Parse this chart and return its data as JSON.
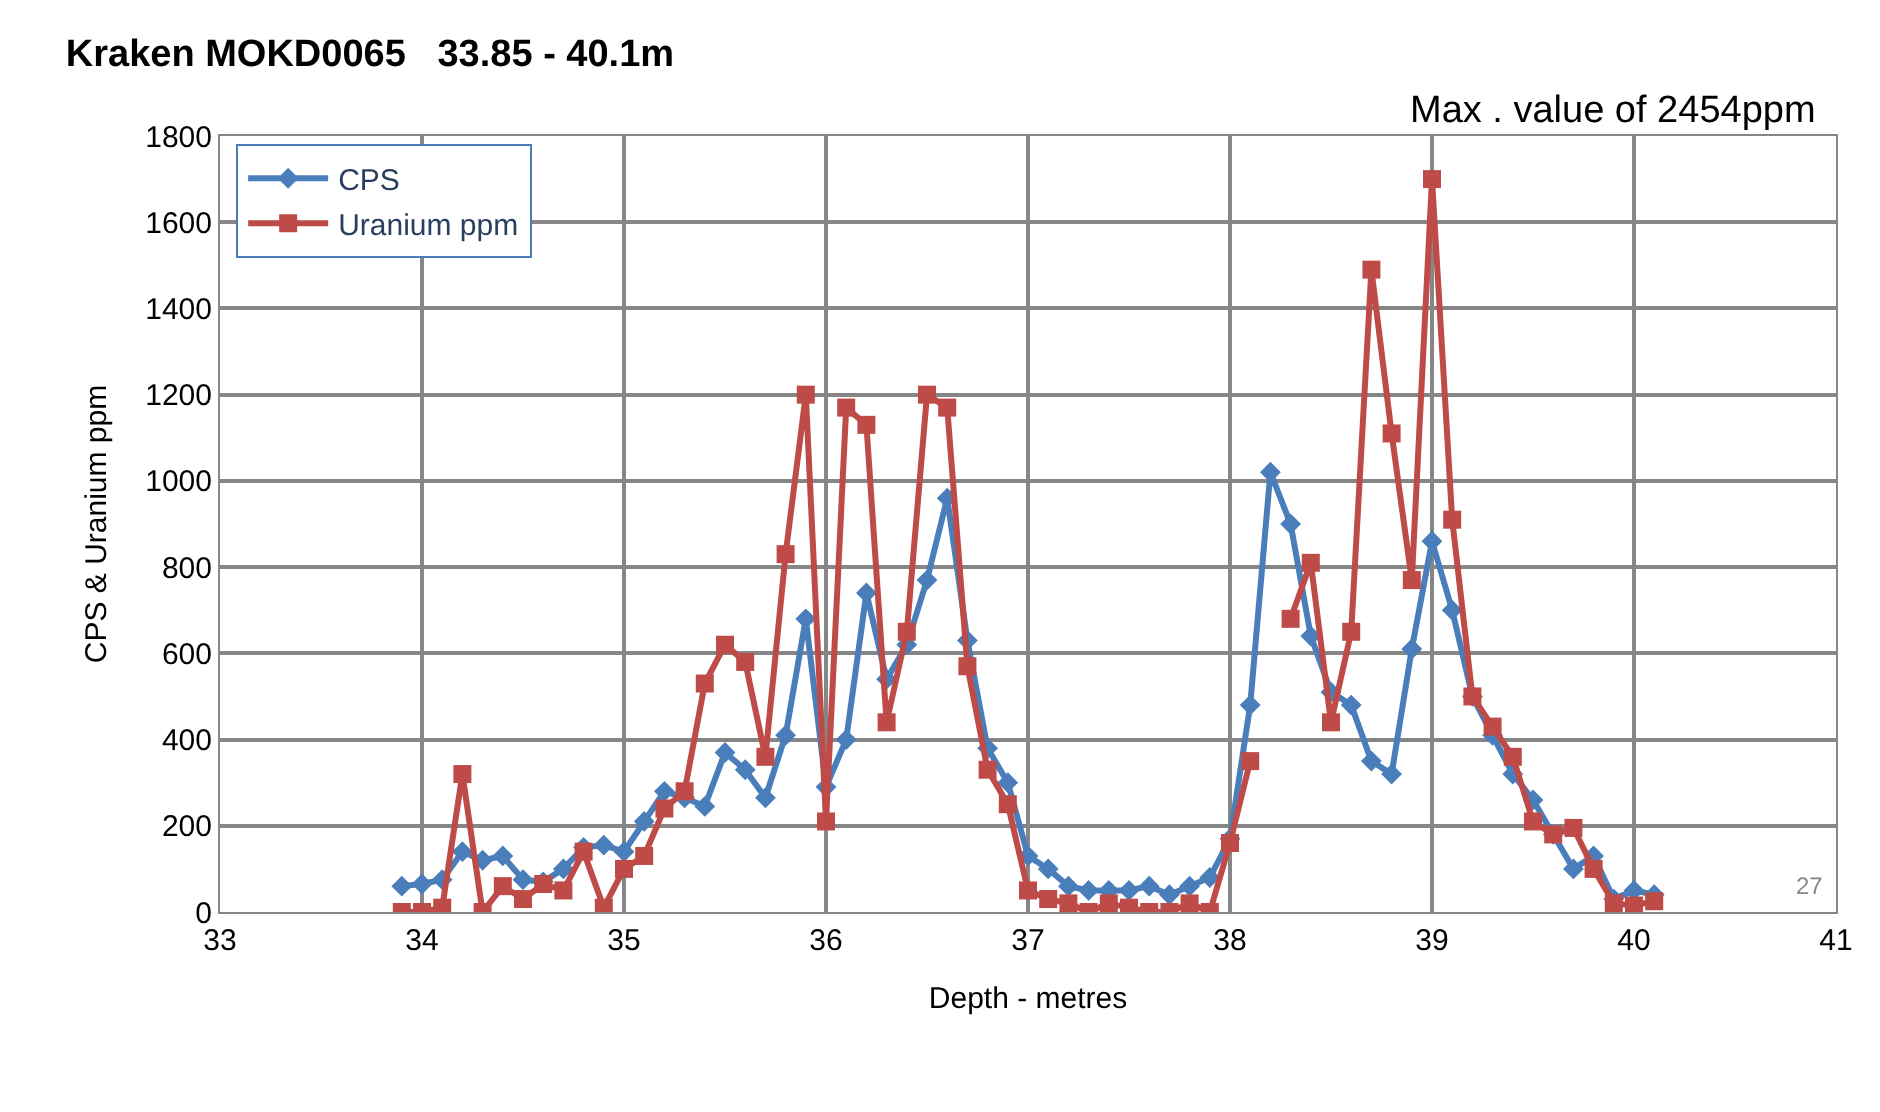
{
  "chart_data": {
    "type": "line",
    "title": "Kraken MOKD0065   33.85 - 40.1m",
    "xlabel": "Depth - metres",
    "ylabel": "CPS & Uranium ppm",
    "annotations": [
      "Max . value of 2454ppm",
      "27"
    ],
    "x": [
      33.9,
      34.0,
      34.1,
      34.2,
      34.3,
      34.4,
      34.5,
      34.6,
      34.7,
      34.8,
      34.9,
      35.0,
      35.1,
      35.2,
      35.3,
      35.4,
      35.5,
      35.6,
      35.7,
      35.8,
      35.9,
      36.0,
      36.1,
      36.2,
      36.3,
      36.4,
      36.5,
      36.6,
      36.7,
      36.8,
      36.9,
      37.0,
      37.1,
      37.2,
      37.3,
      37.4,
      37.5,
      37.6,
      37.7,
      37.8,
      37.9,
      38.0,
      38.1,
      38.2,
      38.3,
      38.4,
      38.5,
      38.6,
      38.7,
      38.8,
      38.9,
      39.0,
      39.1,
      39.2,
      39.3,
      39.4,
      39.5,
      39.6,
      39.7,
      39.8,
      39.9,
      40.0,
      40.1
    ],
    "series": [
      {
        "name": "CPS",
        "color": "#4a7ebb",
        "marker": "diamond",
        "values": [
          60,
          65,
          75,
          140,
          120,
          130,
          75,
          70,
          100,
          150,
          155,
          140,
          210,
          280,
          265,
          245,
          370,
          330,
          265,
          410,
          680,
          290,
          400,
          740,
          540,
          620,
          770,
          960,
          630,
          380,
          300,
          130,
          100,
          60,
          50,
          50,
          50,
          60,
          40,
          60,
          80,
          170,
          480,
          1020,
          900,
          640,
          510,
          480,
          350,
          320,
          610,
          860,
          700,
          500,
          410,
          320,
          260,
          180,
          100,
          130,
          30,
          50,
          40
        ]
      },
      {
        "name": "Uranium ppm",
        "color": "#be4b48",
        "marker": "square",
        "values": [
          0,
          0,
          10,
          320,
          0,
          60,
          30,
          65,
          50,
          140,
          10,
          100,
          130,
          240,
          280,
          530,
          620,
          580,
          360,
          830,
          1200,
          210,
          1170,
          1130,
          440,
          650,
          1200,
          1170,
          570,
          330,
          250,
          50,
          30,
          20,
          0,
          20,
          10,
          0,
          0,
          20,
          0,
          160,
          350,
          null,
          680,
          810,
          440,
          650,
          1490,
          1110,
          770,
          1700,
          910,
          500,
          430,
          360,
          210,
          180,
          195,
          100,
          20,
          15,
          25
        ]
      }
    ],
    "xlim": [
      33,
      41
    ],
    "xticks": [
      33,
      34,
      35,
      36,
      37,
      38,
      39,
      40,
      41
    ],
    "ylim": [
      0,
      1800
    ],
    "yticks": [
      0,
      200,
      400,
      600,
      800,
      1000,
      1200,
      1400,
      1600,
      1800
    ],
    "grid": true,
    "legend": "top left",
    "line_style": "solid"
  }
}
